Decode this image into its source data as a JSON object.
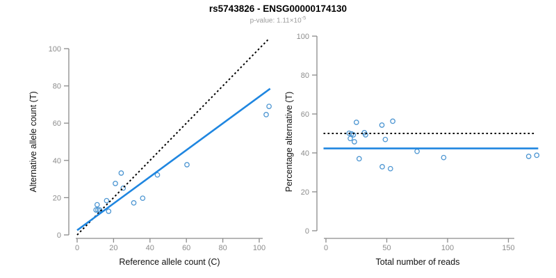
{
  "header": {
    "title": "rs5743826 - ENSG00000174130",
    "pvalue_prefix": "p-value: 1.11×10",
    "pvalue_exponent": "-5"
  },
  "colors": {
    "regression_blue": "#1f86e0",
    "point_blue": "#4d96d2",
    "dotted_black": "#000000",
    "axis_gray": "#8a8a8a",
    "tick_label_gray": "#8c8c8c"
  },
  "chart_data": [
    {
      "type": "scatter",
      "panel": "left",
      "xlabel": "Reference allele count (C)",
      "ylabel": "Alternative allele count (T)",
      "xlim": [
        0,
        100
      ],
      "ylim": [
        0,
        100
      ],
      "xticks": [
        0,
        20,
        40,
        60,
        80,
        100
      ],
      "yticks": [
        0,
        20,
        40,
        60,
        80,
        100
      ],
      "grid": false,
      "points": [
        [
          10.4,
          13.4
        ],
        [
          11.4,
          13.4
        ],
        [
          12.4,
          13.4
        ],
        [
          11,
          16.2
        ],
        [
          16.2,
          18.4
        ],
        [
          17.3,
          12.7
        ],
        [
          21,
          27.6
        ],
        [
          24.2,
          33.2
        ],
        [
          25.3,
          25.1
        ],
        [
          31.1,
          17.2
        ],
        [
          36,
          19.7
        ],
        [
          44.1,
          32.2
        ],
        [
          60.3,
          37.7
        ],
        [
          103.8,
          64.6
        ],
        [
          105.4,
          69
        ]
      ],
      "lines": [
        {
          "name": "identity-line",
          "style": "dotted",
          "color": "#000000",
          "from": [
            0,
            0
          ],
          "to": [
            105,
            105
          ]
        },
        {
          "name": "regression-line",
          "style": "solid",
          "color": "#1f86e0",
          "from": [
            0,
            2.5
          ],
          "to": [
            106,
            78.5
          ]
        }
      ]
    },
    {
      "type": "scatter",
      "panel": "right",
      "xlabel": "Total number of reads",
      "ylabel": "Percentage alternative (T)",
      "xlim": [
        0,
        150
      ],
      "ylim": [
        0,
        100
      ],
      "xticks": [
        0,
        50,
        100,
        150
      ],
      "yticks": [
        0,
        20,
        40,
        60,
        80,
        100
      ],
      "grid": false,
      "points": [
        [
          19,
          50.1
        ],
        [
          21,
          49.8
        ],
        [
          22.5,
          49.3
        ],
        [
          20,
          47.4
        ],
        [
          23.4,
          45.7
        ],
        [
          25,
          55.7
        ],
        [
          27.3,
          37
        ],
        [
          31.6,
          50.4
        ],
        [
          32.6,
          49.3
        ],
        [
          46,
          54.3
        ],
        [
          48.8,
          46.9
        ],
        [
          46.3,
          32.9
        ],
        [
          53,
          31.9
        ],
        [
          54.9,
          56.3
        ],
        [
          74.9,
          40.8
        ],
        [
          96.8,
          37.6
        ],
        [
          166.7,
          38.2
        ],
        [
          173.3,
          38.8
        ]
      ],
      "lines": [
        {
          "name": "expected-50pct-line",
          "style": "dotted",
          "color": "#000000",
          "from": [
            -2,
            50
          ],
          "to": [
            171,
            50
          ]
        },
        {
          "name": "mean-percentage-line",
          "style": "solid",
          "color": "#1f86e0",
          "from": [
            -2,
            42.3
          ],
          "to": [
            174.5,
            42.3
          ]
        }
      ]
    }
  ]
}
